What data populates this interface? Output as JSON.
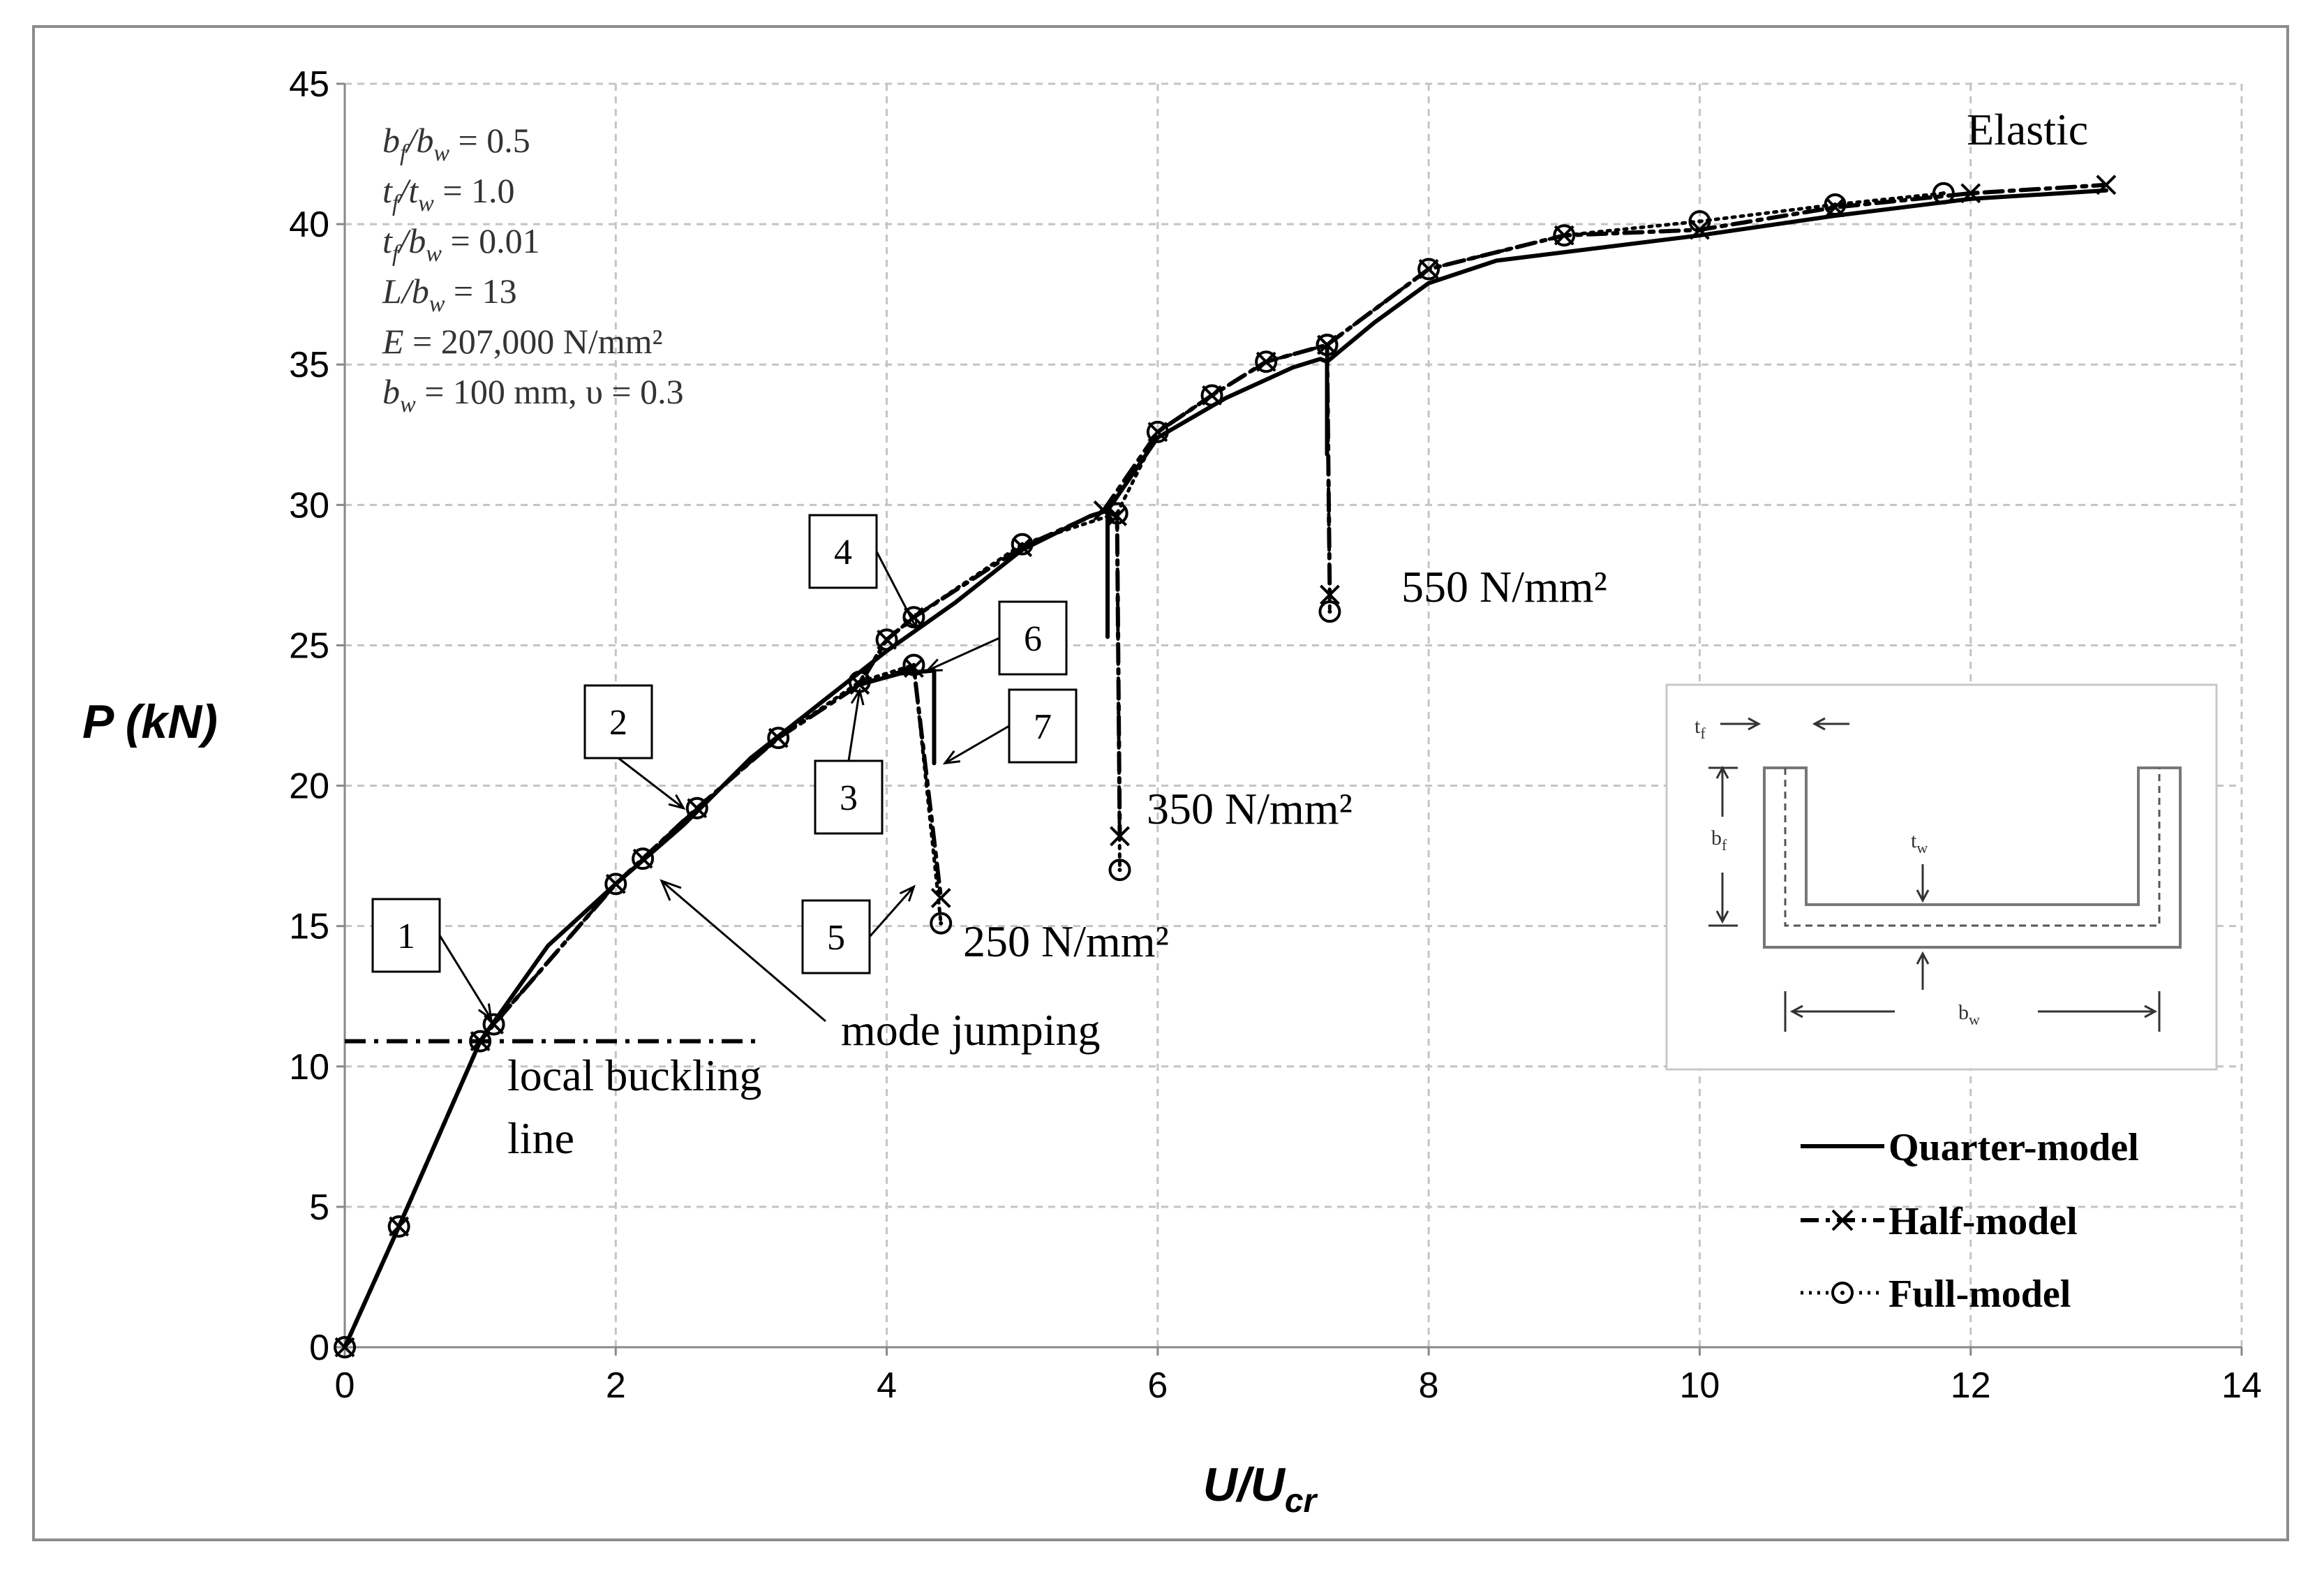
{
  "chart_data": {
    "type": "line",
    "xlabel": "U/U",
    "xlabel_sub": "cr",
    "ylabel": "P (kN)",
    "xlim": [
      0,
      14
    ],
    "ylim": [
      0,
      45
    ],
    "xticks": [
      0,
      2,
      4,
      6,
      8,
      10,
      12,
      14
    ],
    "yticks": [
      0,
      5,
      10,
      15,
      20,
      25,
      30,
      35,
      40,
      45
    ],
    "grid": "dashed",
    "legend_position": "bottom-right",
    "series": [
      {
        "name": "Quarter-model",
        "style": "solid",
        "marker": "none",
        "branches": [
          [
            [
              0,
              0
            ],
            [
              0.4,
              4.3
            ],
            [
              1,
              10.9
            ],
            [
              1.5,
              14.3
            ],
            [
              2,
              16.5
            ],
            [
              2.5,
              18.6
            ],
            [
              3,
              21.0
            ],
            [
              3.5,
              22.9
            ],
            [
              4,
              24.8
            ],
            [
              4.5,
              26.5
            ],
            [
              5,
              28.4
            ],
            [
              5.5,
              29.6
            ],
            [
              5.63,
              29.8
            ],
            [
              5.63,
              25.3
            ]
          ],
          [
            [
              3.8,
              23.6
            ],
            [
              4.1,
              24.0
            ],
            [
              4.35,
              24.1
            ],
            [
              4.35,
              20.8
            ]
          ],
          [
            [
              5.63,
              29.8
            ],
            [
              6,
              32.4
            ],
            [
              6.5,
              33.8
            ],
            [
              7,
              34.9
            ],
            [
              7.2,
              35.2
            ],
            [
              7.25,
              35.1
            ],
            [
              7.25,
              31.8
            ]
          ],
          [
            [
              7.25,
              35.1
            ],
            [
              7.6,
              36.5
            ],
            [
              8,
              37.9
            ],
            [
              8.5,
              38.7
            ],
            [
              9,
              39.0
            ],
            [
              10,
              39.6
            ],
            [
              11,
              40.3
            ],
            [
              12,
              40.9
            ],
            [
              13,
              41.2
            ]
          ]
        ]
      },
      {
        "name": "Half-model",
        "style": "dash-dot",
        "marker": "x",
        "branches": [
          [
            [
              0,
              0
            ],
            [
              0.4,
              4.3
            ],
            [
              1,
              10.9
            ],
            [
              1.1,
              11.5
            ],
            [
              2,
              16.5
            ],
            [
              2.2,
              17.4
            ],
            [
              2.6,
              19.2
            ],
            [
              3.2,
              21.7
            ],
            [
              3.8,
              23.6
            ],
            [
              4,
              25.2
            ],
            [
              4.2,
              26.0
            ],
            [
              5,
              28.5
            ],
            [
              5.6,
              29.8
            ],
            [
              5.7,
              29.6
            ],
            [
              5.72,
              18.2
            ]
          ],
          [
            [
              3.8,
              23.6
            ],
            [
              4.2,
              24.2
            ],
            [
              4.4,
              16.0
            ]
          ],
          [
            [
              5.6,
              29.8
            ],
            [
              6,
              32.6
            ],
            [
              6.4,
              33.9
            ],
            [
              6.8,
              35.1
            ],
            [
              7.25,
              35.7
            ],
            [
              7.27,
              26.8
            ]
          ],
          [
            [
              7.25,
              35.7
            ],
            [
              8,
              38.4
            ],
            [
              9,
              39.6
            ],
            [
              10,
              39.8
            ],
            [
              11,
              40.6
            ],
            [
              12,
              41.1
            ],
            [
              13,
              41.4
            ]
          ]
        ]
      },
      {
        "name": "Full-model",
        "style": "dotted",
        "marker": "circle-dot",
        "branches": [
          [
            [
              0,
              0
            ],
            [
              0.4,
              4.3
            ],
            [
              1,
              10.9
            ],
            [
              1.1,
              11.5
            ],
            [
              2,
              16.5
            ],
            [
              2.2,
              17.4
            ],
            [
              2.6,
              19.2
            ],
            [
              3.2,
              21.7
            ],
            [
              3.8,
              23.7
            ],
            [
              4,
              25.2
            ],
            [
              4.2,
              26.0
            ],
            [
              5,
              28.6
            ],
            [
              5.7,
              29.7
            ],
            [
              5.72,
              17.0
            ]
          ],
          [
            [
              3.8,
              23.7
            ],
            [
              4.2,
              24.3
            ],
            [
              4.4,
              15.1
            ]
          ],
          [
            [
              5.7,
              29.7
            ],
            [
              6,
              32.6
            ],
            [
              6.4,
              33.9
            ],
            [
              6.8,
              35.1
            ],
            [
              7.25,
              35.7
            ],
            [
              7.27,
              26.2
            ]
          ],
          [
            [
              7.25,
              35.7
            ],
            [
              8,
              38.4
            ],
            [
              9,
              39.6
            ],
            [
              10,
              40.1
            ],
            [
              11,
              40.7
            ],
            [
              11.8,
              41.1
            ]
          ]
        ]
      }
    ],
    "reference_line": {
      "y": 10.9,
      "x_from": 0,
      "x_to": 3.05,
      "style": "dash-dot"
    },
    "parameters": [
      {
        "lhs": "b",
        "lhs_sub": "f",
        "mid": "/b",
        "mid_sub": "w",
        "rhs": " = 0.5"
      },
      {
        "lhs": "t",
        "lhs_sub": "f",
        "mid": "/t",
        "mid_sub": "w",
        "rhs": " = 1.0"
      },
      {
        "lhs": "t",
        "lhs_sub": "f",
        "mid": "/b",
        "mid_sub": "w",
        "rhs": " = 0.01"
      },
      {
        "lhs": "L",
        "lhs_sub": "",
        "mid": "/b",
        "mid_sub": "w",
        "rhs": " = 13"
      },
      {
        "lhs": "E",
        "lhs_sub": "",
        "mid": "",
        "mid_sub": "",
        "rhs": " = 207,000 N/mm²"
      },
      {
        "lhs": "b",
        "lhs_sub": "w",
        "mid": "",
        "mid_sub": "",
        "rhs": " = 100 mm, υ = 0.3"
      }
    ],
    "annotations": {
      "elastic": "Elastic",
      "s550": "550 N/mm²",
      "s350": "350 N/mm²",
      "s250": "250 N/mm²",
      "mode_jumping": "mode jumping",
      "lbl_line1": "local buckling",
      "lbl_line2": "line"
    },
    "callouts": [
      {
        "label": "1",
        "x": 1.08,
        "y": 11.7
      },
      {
        "label": "2",
        "x": 2.5,
        "y": 19.2
      },
      {
        "label": "3",
        "x": 3.8,
        "y": 23.4
      },
      {
        "label": "4",
        "x": 4.22,
        "y": 25.6
      },
      {
        "label": "5",
        "x": 4.2,
        "y": 16.4
      },
      {
        "label": "6",
        "x": 4.3,
        "y": 24.1
      },
      {
        "label": "7",
        "x": 4.43,
        "y": 20.8
      }
    ],
    "inset_labels": {
      "tf": "t",
      "tf_sub": "f",
      "bf": "b",
      "bf_sub": "f",
      "tw": "t",
      "tw_sub": "w",
      "bw": "b",
      "bw_sub": "w"
    }
  }
}
